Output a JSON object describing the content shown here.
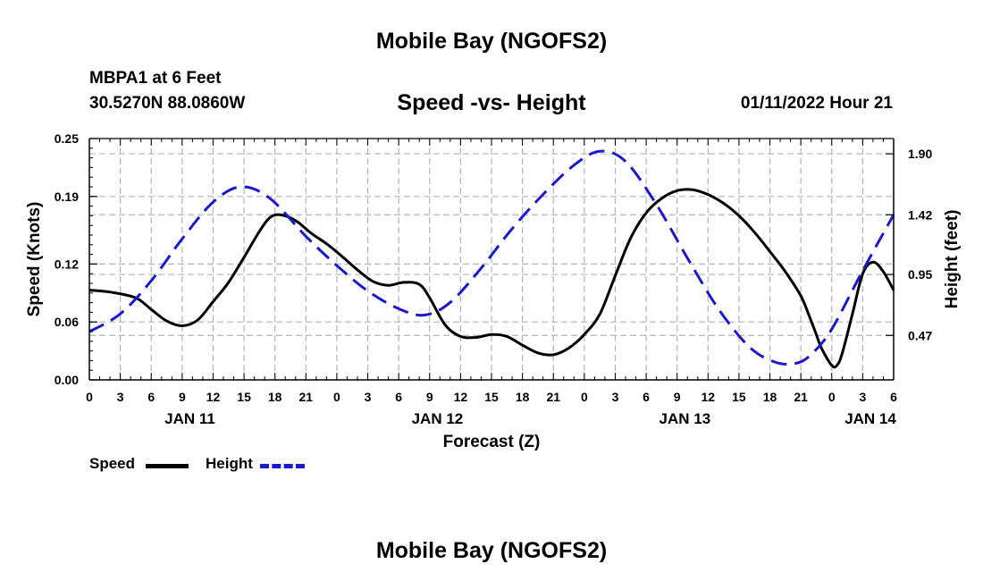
{
  "header": {
    "title": "Mobile Bay (NGOFS2)",
    "station": "MBPA1 at 6 Feet",
    "coords": "30.5270N  88.0860W",
    "subtitle": "Speed -vs- Height",
    "datetime": "01/11/2022 Hour 21"
  },
  "footer": {
    "title": "Mobile Bay (NGOFS2)"
  },
  "colors": {
    "speed": "#000000",
    "height": "#1a1acc",
    "grid": "#b4b4b4"
  },
  "chart_data": {
    "type": "line",
    "title": "Speed -vs- Height",
    "xlabel": "Forecast (Z)",
    "ylabel": "Speed (Knots)",
    "y2label": "Height (feet)",
    "xlim": [
      0,
      78
    ],
    "ylim": [
      0,
      0.25
    ],
    "y2lim": [
      0.12,
      2.02
    ],
    "yticks": [
      "0.00",
      "0.06",
      "0.12",
      "0.19",
      "0.25"
    ],
    "y2ticks": [
      "0.47",
      "0.95",
      "1.42",
      "1.90"
    ],
    "xticks": [
      "0",
      "3",
      "6",
      "9",
      "12",
      "15",
      "18",
      "21",
      "0",
      "3",
      "6",
      "9",
      "12",
      "15",
      "18",
      "21",
      "0",
      "3",
      "6",
      "9",
      "12",
      "15",
      "18",
      "21",
      "0",
      "3",
      "6"
    ],
    "day_labels": [
      {
        "label": "JAN 11",
        "hour": 9.75
      },
      {
        "label": "JAN 12",
        "hour": 33.75
      },
      {
        "label": "JAN 13",
        "hour": 57.75
      },
      {
        "label": "JAN 14",
        "hour": 75.75
      }
    ],
    "grid": true,
    "series": [
      {
        "name": "Speed",
        "style": "solid",
        "axis": "left",
        "x": [
          0,
          2,
          4.5,
          6,
          7.5,
          9,
          10.5,
          12,
          13.5,
          15,
          16.5,
          17.5,
          18.5,
          20,
          21.5,
          23,
          24.5,
          26,
          27.5,
          29,
          30.5,
          32,
          33,
          34.5,
          36,
          37.5,
          39,
          40.5,
          42,
          43.5,
          45,
          46.5,
          48,
          49.5,
          51,
          52.5,
          54,
          55.5,
          57,
          58.5,
          60,
          61.5,
          63,
          64.5,
          66,
          67.5,
          69,
          70,
          70.5,
          71,
          72,
          72.5,
          73,
          74,
          75,
          76,
          77,
          78
        ],
        "values": [
          0.093,
          0.091,
          0.085,
          0.073,
          0.061,
          0.056,
          0.062,
          0.081,
          0.101,
          0.127,
          0.154,
          0.168,
          0.171,
          0.165,
          0.152,
          0.141,
          0.128,
          0.114,
          0.102,
          0.098,
          0.101,
          0.099,
          0.085,
          0.057,
          0.045,
          0.044,
          0.047,
          0.045,
          0.036,
          0.028,
          0.026,
          0.033,
          0.047,
          0.068,
          0.108,
          0.147,
          0.173,
          0.188,
          0.196,
          0.197,
          0.192,
          0.183,
          0.17,
          0.153,
          0.133,
          0.112,
          0.087,
          0.061,
          0.047,
          0.033,
          0.015,
          0.015,
          0.027,
          0.068,
          0.11,
          0.122,
          0.112,
          0.093
        ]
      },
      {
        "name": "Height",
        "style": "dashed",
        "axis": "right",
        "x": [
          0,
          3,
          6,
          9,
          12,
          14.7,
          17.5,
          21,
          24,
          27,
          30,
          32.5,
          35,
          38,
          41,
          44,
          47,
          49.5,
          52,
          55,
          58,
          61,
          64,
          66.5,
          68.5,
          70,
          72,
          75,
          78
        ],
        "values": [
          0.5,
          0.64,
          0.9,
          1.23,
          1.52,
          1.64,
          1.55,
          1.25,
          1.02,
          0.82,
          0.68,
          0.63,
          0.73,
          1.0,
          1.31,
          1.58,
          1.81,
          1.92,
          1.84,
          1.5,
          1.08,
          0.68,
          0.38,
          0.26,
          0.25,
          0.32,
          0.52,
          0.98,
          1.42
        ]
      }
    ]
  },
  "legend": {
    "speed_label": "Speed",
    "height_label": "Height"
  }
}
